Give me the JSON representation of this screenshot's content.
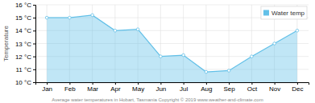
{
  "chart_data": {
    "type": "area",
    "categories": [
      "Jan",
      "Feb",
      "Mar",
      "Apr",
      "May",
      "Jun",
      "Jul",
      "Aug",
      "Sep",
      "Oct",
      "Nov",
      "Dec"
    ],
    "series": [
      {
        "name": "Water temp",
        "color": "#62c0e8",
        "values": [
          15.0,
          15.0,
          15.2,
          14.0,
          14.1,
          12.0,
          12.1,
          10.8,
          10.9,
          12.0,
          13.0,
          14.0
        ]
      }
    ],
    "ylim": [
      10,
      16
    ],
    "yticks": [
      {
        "value": 10,
        "label": "10 °C"
      },
      {
        "value": 11,
        "label": "11 °C"
      },
      {
        "value": 12,
        "label": "12 °C"
      },
      {
        "value": 13,
        "label": "13 °C"
      },
      {
        "value": 14,
        "label": "14 °C"
      },
      {
        "value": 15,
        "label": "15 °C"
      },
      {
        "value": 16,
        "label": "16 °C"
      }
    ],
    "ylabel": "Temperature",
    "xlabel": "Average water temperatures in Hobart, Tasmania   Copyright © 2019 www.weather-and-climate.com",
    "grid": true,
    "legend": "upper right"
  }
}
